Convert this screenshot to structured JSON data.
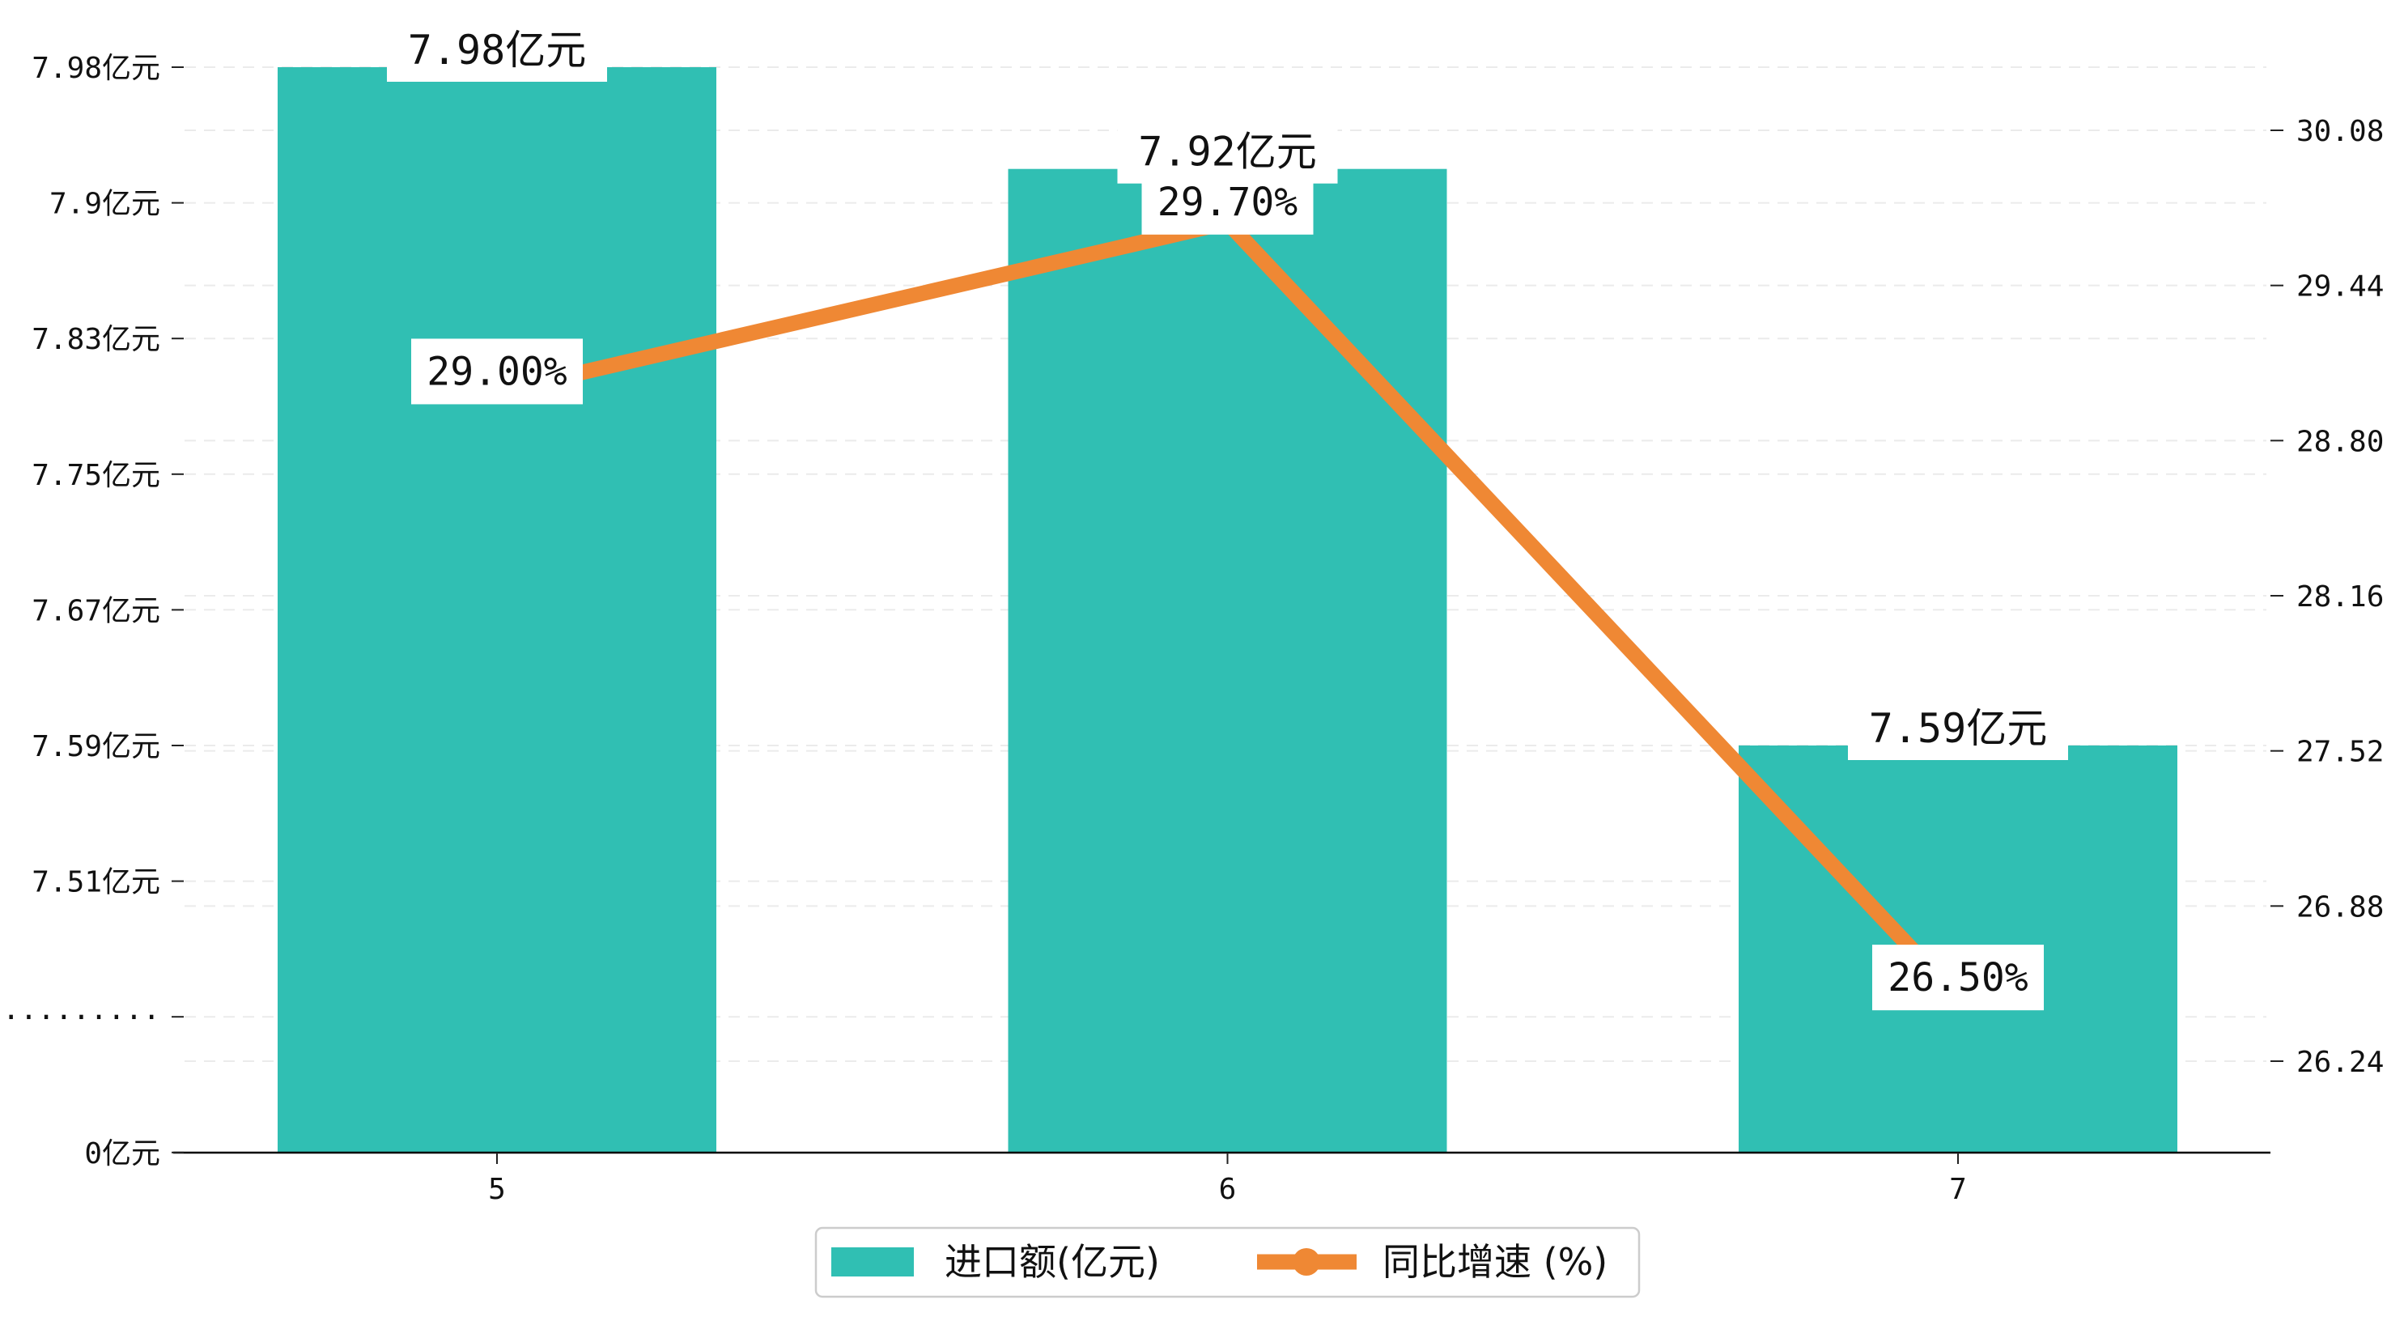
{
  "chart_data": {
    "type": "bar",
    "categories": [
      "5",
      "6",
      "7"
    ],
    "series": [
      {
        "name": "进口额(亿元)",
        "type": "bar",
        "axis": "left",
        "values": [
          7.98,
          7.92,
          7.59
        ],
        "labels": [
          "7.98亿元",
          "7.92亿元",
          "7.59亿元"
        ],
        "color": "#30bfb3"
      },
      {
        "name": "同比增速 (%)",
        "type": "line",
        "axis": "right",
        "marker": "circle",
        "values": [
          29.0,
          29.7,
          26.5
        ],
        "labels": [
          "29.00%",
          "29.70%",
          "26.50%"
        ],
        "color": "#ef8834"
      }
    ],
    "y_left": {
      "broken": true,
      "tick_values": [
        7.98,
        7.9,
        7.83,
        7.75,
        7.67,
        7.59,
        7.51,
        null,
        0
      ],
      "tick_labels": [
        "7.98亿元",
        "7.9亿元",
        "7.83亿元",
        "7.75亿元",
        "7.67亿元",
        "7.59亿元",
        "7.51亿元",
        "·········",
        "0亿元"
      ]
    },
    "y_right": {
      "tick_values": [
        30.08,
        29.44,
        28.8,
        28.16,
        27.52,
        26.88,
        26.24
      ],
      "tick_labels": [
        "30.08",
        "29.44",
        "28.80",
        "28.16",
        "27.52",
        "26.88",
        "26.24"
      ]
    },
    "grid": true,
    "legend": "bottom-center"
  }
}
